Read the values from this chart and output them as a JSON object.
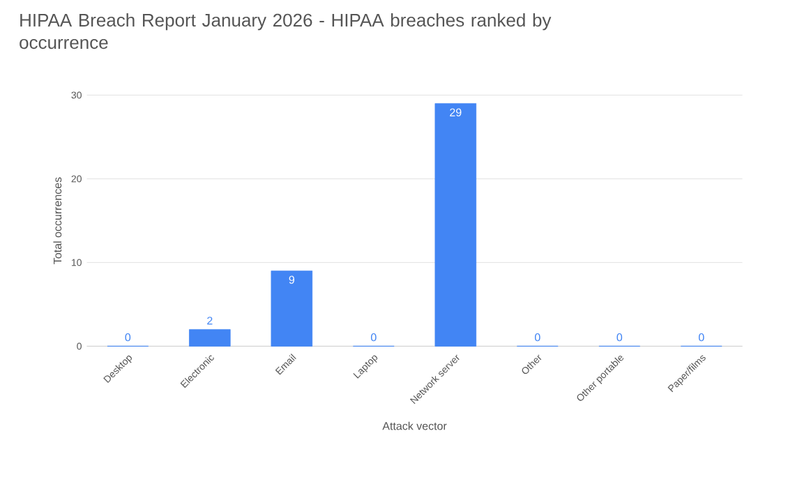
{
  "chart_data": {
    "type": "bar",
    "title": "HIPAA Breach Report January 2026 - HIPAA breaches ranked by occurrence",
    "xlabel": "Attack vector",
    "ylabel": "Total occurrences",
    "categories": [
      "Desktop",
      "Electronic",
      "Email",
      "Laptop",
      "Network server",
      "Other",
      "Other portable",
      "Paper/films"
    ],
    "values": [
      0,
      2,
      9,
      0,
      29,
      0,
      0,
      0
    ],
    "color": "#4285f4",
    "ylim": [
      0,
      30
    ],
    "yticks": [
      0,
      10,
      20,
      30
    ],
    "grid": "y",
    "data_labels": true
  }
}
